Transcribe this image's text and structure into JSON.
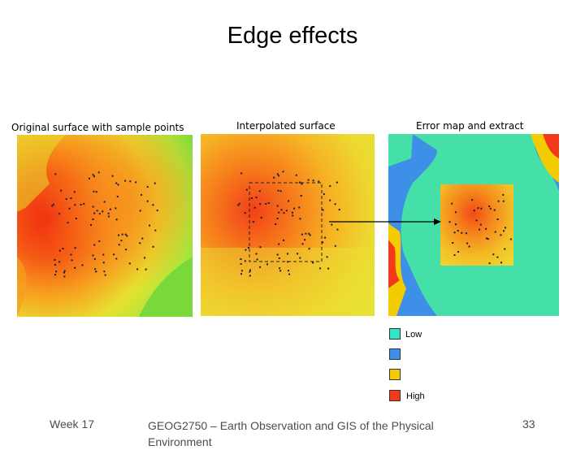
{
  "slide": {
    "title": "Edge effects",
    "captions": {
      "original": "Original surface with sample points",
      "interpolated": "Interpolated surface",
      "error": "Error map and extract"
    },
    "legend": {
      "low_label": "Low",
      "high_label": "High",
      "colors": [
        "#33e6c8",
        "#3d8fe8",
        "#f2cc00",
        "#f03a1a"
      ]
    },
    "footer": {
      "week": "Week 17",
      "course": "GEOG2750 – Earth Observation and GIS of the Physical Environment",
      "page": "33"
    }
  }
}
